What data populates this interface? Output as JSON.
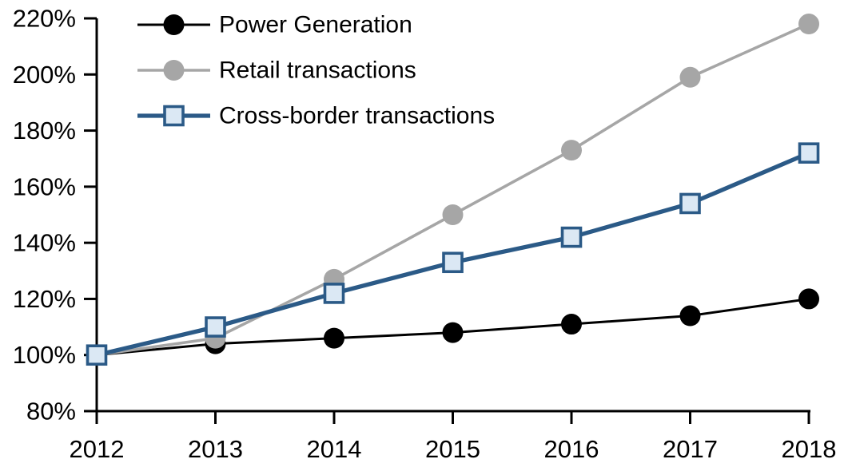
{
  "chart_data": {
    "type": "line",
    "title": "",
    "xlabel": "",
    "ylabel": "",
    "categories": [
      "2012",
      "2013",
      "2014",
      "2015",
      "2016",
      "2017",
      "2018"
    ],
    "series": [
      {
        "name": "Power Generation",
        "color": "#000000",
        "marker": "circle",
        "marker_fill": "#000000",
        "line_width": 3,
        "values": [
          100,
          104,
          106,
          108,
          111,
          114,
          120
        ]
      },
      {
        "name": "Retail transactions",
        "color": "#A6A6A6",
        "marker": "circle",
        "marker_fill": "#A6A6A6",
        "line_width": 3.6,
        "values": [
          100,
          106,
          127,
          150,
          173,
          199,
          218
        ]
      },
      {
        "name": "Cross-border transactions",
        "color": "#2B5A87",
        "marker": "square",
        "marker_fill": "#DBE8F4",
        "line_width": 5.3,
        "values": [
          100,
          110,
          122,
          133,
          142,
          154,
          172
        ]
      }
    ],
    "y_axis": {
      "min": 80,
      "max": 220,
      "step": 20,
      "tick_labels": [
        "80%",
        "100%",
        "120%",
        "140%",
        "160%",
        "180%",
        "200%",
        "220%"
      ],
      "format": "percent"
    },
    "x_axis": {
      "tick_labels": [
        "2012",
        "2013",
        "2014",
        "2015",
        "2016",
        "2017",
        "2018"
      ]
    },
    "legend": {
      "position": "top-left",
      "entries": [
        "Power Generation",
        "Retail transactions",
        "Cross-border transactions"
      ]
    },
    "grid": false,
    "background": "#FFFFFF",
    "axis_color": "#000000"
  }
}
